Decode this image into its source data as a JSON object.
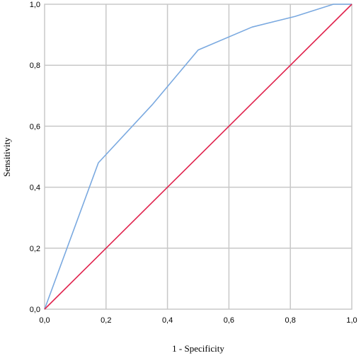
{
  "chart_data": {
    "type": "line",
    "title": "",
    "xlabel": "1 - Specificity",
    "ylabel": "Sensitivity",
    "xlim": [
      0,
      1
    ],
    "ylim": [
      0,
      1
    ],
    "x_ticks": [
      0,
      0.2,
      0.4,
      0.6,
      0.8,
      1.0
    ],
    "y_ticks": [
      0,
      0.2,
      0.4,
      0.6,
      0.8,
      1.0
    ],
    "x_tick_labels": [
      "0,0",
      "0,2",
      "0,4",
      "0,6",
      "0,8",
      "1,0"
    ],
    "y_tick_labels": [
      "0,0",
      "0,2",
      "0,4",
      "0,6",
      "0,8",
      "1,0"
    ],
    "grid": true,
    "series": [
      {
        "color": "#7aa9e0",
        "x": [
          0.0,
          0.175,
          0.35,
          0.5,
          0.675,
          0.815,
          0.94,
          1.0
        ],
        "y": [
          0.0,
          0.48,
          0.67,
          0.85,
          0.925,
          0.96,
          1.0,
          1.0
        ]
      },
      {
        "color": "#e0234d",
        "x": [
          0.0,
          1.0
        ],
        "y": [
          0.0,
          1.0
        ]
      }
    ]
  }
}
